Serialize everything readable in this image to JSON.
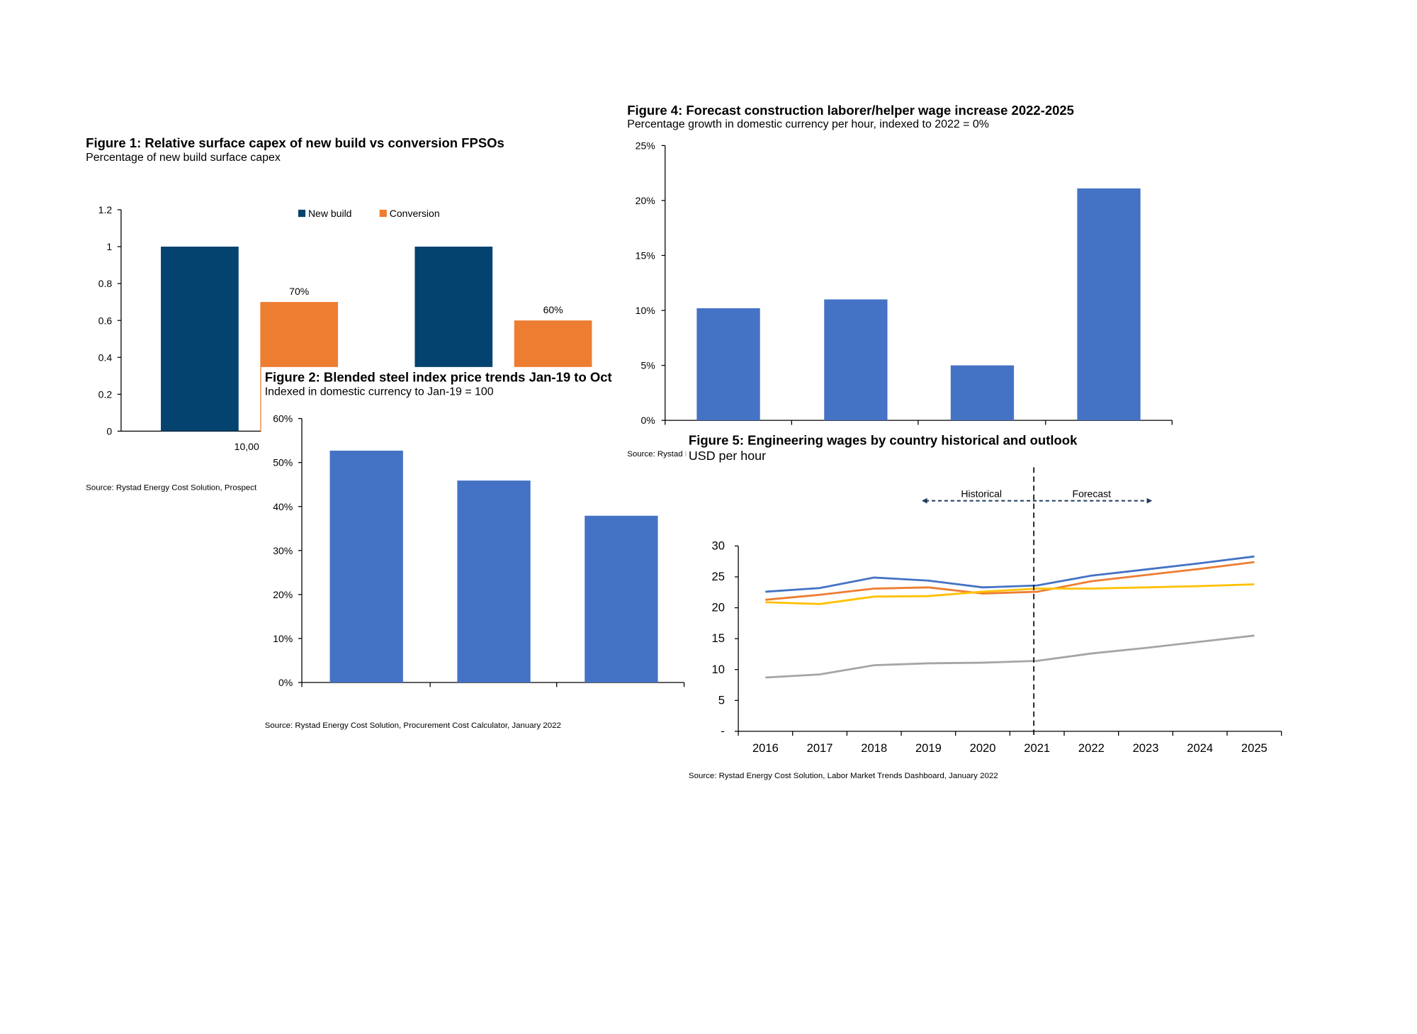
{
  "colors": {
    "navy": "#04426f",
    "orange": "#ed7d31",
    "bar_blue": "#4472c4",
    "line_blue": "#4472c4",
    "line_orange": "#ed7d31",
    "line_yellow": "#ffc000",
    "line_gray": "#a5a5a5"
  },
  "figures": {
    "fig1": {
      "title": "Figure 1: Relative surface capex of new build vs conversion FPSOs",
      "subtitle": "Percentage of new build surface capex",
      "source": "Source: Rystad Energy Cost Solution, Prospect"
    },
    "fig2": {
      "title": "Figure 2: Blended steel index price trends Jan-19 to Oct",
      "subtitle": "Indexed in domestic currency to Jan-19 = 100",
      "source": "Source: Rystad Energy Cost Solution, Procurement Cost Calculator, January 2022"
    },
    "fig4": {
      "title": "Figure 4: Forecast construction laborer/helper wage increase 2022-2025",
      "subtitle": "Percentage growth in domestic currency per hour, indexed to 2022 = 0%",
      "source": "Source: Rystad I"
    },
    "fig5": {
      "title": "Figure 5: Engineering wages by country historical and outlook",
      "subtitle": "USD per hour",
      "source": "Source: Rystad Energy Cost Solution, Labor Market Trends Dashboard, January 2022",
      "historical_label": "Historical",
      "forecast_label": "Forecast"
    }
  },
  "chart_data": [
    {
      "id": "fig1",
      "type": "bar",
      "title": "Figure 1: Relative surface capex of new build vs conversion FPSOs",
      "categories": [
        "10,00",
        ""
      ],
      "series": [
        {
          "name": "New build",
          "values": [
            1,
            1
          ],
          "data_labels": [
            "",
            ""
          ]
        },
        {
          "name": "Conversion",
          "values": [
            0.7,
            0.6
          ],
          "data_labels": [
            "70%",
            "60%"
          ]
        }
      ],
      "ylim": [
        0,
        1.2
      ],
      "yticks": [
        "0",
        "0.2",
        "0.4",
        "0.6",
        "0.8",
        "1",
        "1.2"
      ],
      "legend": "top"
    },
    {
      "id": "fig2",
      "type": "bar",
      "title": "Figure 2: Blended steel index price trends Jan-19 to Oct",
      "categories": [
        "",
        "",
        ""
      ],
      "values": [
        52.7,
        45.9,
        37.9
      ],
      "ylim": [
        0,
        60
      ],
      "yticks": [
        "0%",
        "10%",
        "20%",
        "30%",
        "40%",
        "50%",
        "60%"
      ]
    },
    {
      "id": "fig4",
      "type": "bar",
      "title": "Figure 4: Forecast construction laborer/helper wage increase 2022-2025",
      "categories": [
        "",
        "",
        "",
        ""
      ],
      "values": [
        10.2,
        11.0,
        5.0,
        21.1
      ],
      "ylim": [
        0,
        25
      ],
      "yticks": [
        "0%",
        "5%",
        "10%",
        "15%",
        "20%",
        "25%"
      ]
    },
    {
      "id": "fig5",
      "type": "line",
      "title": "Figure 5: Engineering wages by country historical and outlook",
      "ylabel": "USD per hour",
      "categories": [
        "2016",
        "2017",
        "2018",
        "2019",
        "2020",
        "2021",
        "2022",
        "2023",
        "2024",
        "2025"
      ],
      "series": [
        {
          "color": "#4472c4",
          "values": [
            22.6,
            23.2,
            24.9,
            24.4,
            23.3,
            23.6,
            25.2,
            26.2,
            27.2,
            28.3
          ]
        },
        {
          "color": "#ed7d31",
          "values": [
            21.3,
            22.1,
            23.1,
            23.3,
            22.3,
            22.6,
            24.3,
            25.3,
            26.3,
            27.4
          ]
        },
        {
          "color": "#ffc000",
          "values": [
            20.9,
            20.6,
            21.8,
            21.9,
            22.6,
            23.1,
            23.1,
            23.3,
            23.5,
            23.8
          ]
        },
        {
          "color": "#a5a5a5",
          "values": [
            8.7,
            9.2,
            10.7,
            11.0,
            11.1,
            11.4,
            12.6,
            13.5,
            14.5,
            15.5
          ]
        }
      ],
      "ylim": [
        0,
        30
      ],
      "yticks": [
        "-",
        "5",
        "10",
        "15",
        "20",
        "25",
        "30"
      ],
      "divider_after": "2021"
    }
  ]
}
